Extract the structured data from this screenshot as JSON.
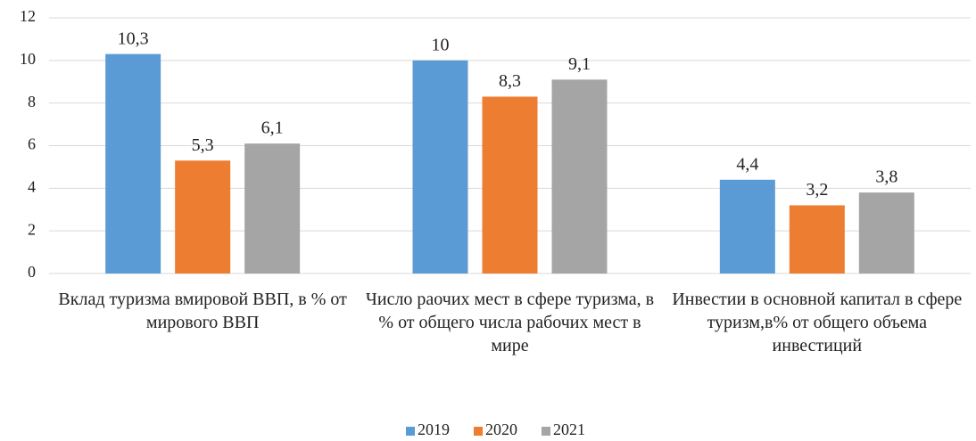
{
  "chart_data": {
    "type": "bar",
    "categories": [
      "Вклад туризма  вмировой ВВП, в % от мирового ВВП",
      "Число раочих мест в сфере туризма, в % от общего числа рабочих мест в мире",
      "Инвестии в основной капитал в сфере туризм,в% от общего объема инвестиций"
    ],
    "series": [
      {
        "name": "2019",
        "color": "#5b9bd5",
        "values": [
          10.3,
          10,
          4.4
        ],
        "value_labels": [
          "10,3",
          "10",
          "4,4"
        ]
      },
      {
        "name": "2020",
        "color": "#ed7d31",
        "values": [
          5.3,
          8.3,
          3.2
        ],
        "value_labels": [
          "5,3",
          "8,3",
          "3,2"
        ]
      },
      {
        "name": "2021",
        "color": "#a5a5a5",
        "values": [
          6.1,
          9.1,
          3.8
        ],
        "value_labels": [
          "6,1",
          "9,1",
          "3,8"
        ]
      }
    ],
    "ylim": [
      0,
      12
    ],
    "yticks": [
      0,
      2,
      4,
      6,
      8,
      10,
      12
    ],
    "grid": true,
    "legend": "bottom"
  }
}
